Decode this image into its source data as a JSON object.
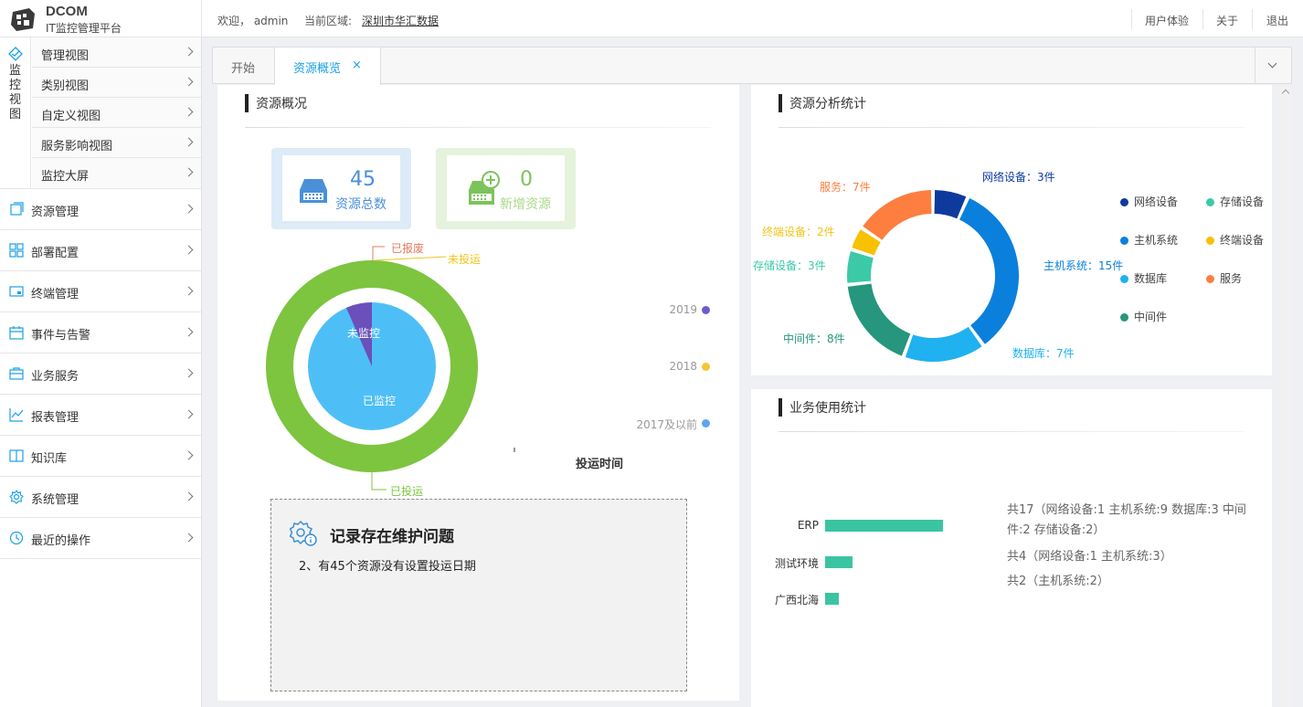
{
  "app": {
    "name": "DCOM",
    "subtitle": "IT监控管理平台"
  },
  "header": {
    "welcome": "欢迎， admin",
    "region_label": "当前区域:",
    "region_value": "深圳市华汇数据",
    "links": [
      "用户体验",
      "关于",
      "退出"
    ]
  },
  "sidebar": {
    "monitor": {
      "label": "监控视图",
      "icon": "monitor-icon",
      "items": [
        "管理视图",
        "类别视图",
        "自定义视图",
        "服务影响视图",
        "监控大屏"
      ]
    },
    "items": [
      {
        "label": "资源管理",
        "icon": "resource-icon"
      },
      {
        "label": "部署配置",
        "icon": "deploy-icon"
      },
      {
        "label": "终端管理",
        "icon": "terminal-icon"
      },
      {
        "label": "事件与告警",
        "icon": "alarm-icon"
      },
      {
        "label": "业务服务",
        "icon": "briefcase-icon"
      },
      {
        "label": "报表管理",
        "icon": "report-icon"
      },
      {
        "label": "知识库",
        "icon": "book-icon"
      },
      {
        "label": "系统管理",
        "icon": "gear-icon"
      },
      {
        "label": "最近的操作",
        "icon": "clock-icon"
      }
    ]
  },
  "tabs": {
    "start": "开始",
    "active": "资源概览",
    "close": "×"
  },
  "overview": {
    "title": "资源概况",
    "total": {
      "value": "45",
      "label": "资源总数",
      "color": "#4a90d9"
    },
    "new": {
      "value": "0",
      "label": "新增资源",
      "color": "#7dc35b"
    },
    "donut_labels": {
      "scrapped": "已报废",
      "not_deployed": "未投运",
      "deployed": "已投运",
      "unmonitored": "未监控",
      "monitored": "已监控"
    },
    "years": [
      "2019",
      "2018",
      "2017及以前"
    ],
    "deploy_time_label": "投运时间",
    "notice": {
      "title": "记录存在维护问题",
      "text": "2、有45个资源没有设置投运日期"
    }
  },
  "analysis": {
    "title": "资源分析统计",
    "chart_data": {
      "type": "pie",
      "categories": [
        "网络设备",
        "主机系统",
        "数据库",
        "中间件",
        "存储设备",
        "终端设备",
        "服务"
      ],
      "values": [
        3,
        15,
        7,
        8,
        3,
        2,
        7
      ],
      "labels": [
        "网络设备：3件",
        "主机系统：15件",
        "数据库：7件",
        "中间件：8件",
        "存储设备：3件",
        "终端设备：2件",
        "服务：7件"
      ],
      "colors": [
        "#0e3a9e",
        "#0b7fdc",
        "#1fb1f0",
        "#26967e",
        "#3cc9a8",
        "#f7c100",
        "#fd7e3f"
      ],
      "legend": [
        "网络设备",
        "存储设备",
        "主机系统",
        "终端设备",
        "数据库",
        "服务",
        "中间件"
      ],
      "legend_colors": [
        "#0e3a9e",
        "#3cc9a8",
        "#0b7fdc",
        "#f7c100",
        "#1fb1f0",
        "#fd7e3f",
        "#26967e"
      ],
      "legend_position": "right"
    }
  },
  "business": {
    "title": "业务使用统计",
    "chart_data": {
      "type": "bar",
      "orientation": "horizontal",
      "categories": [
        "ERP",
        "测试环境",
        "广西北海"
      ],
      "values": [
        17,
        4,
        2
      ],
      "notes": [
        "共17（网络设备:1 主机系统:9 数据库:3 中间件:2 存储设备:2）",
        "共4（网络设备:1 主机系统:3）",
        "共2（主机系统:2）"
      ],
      "color": "#3bc4a1"
    }
  }
}
